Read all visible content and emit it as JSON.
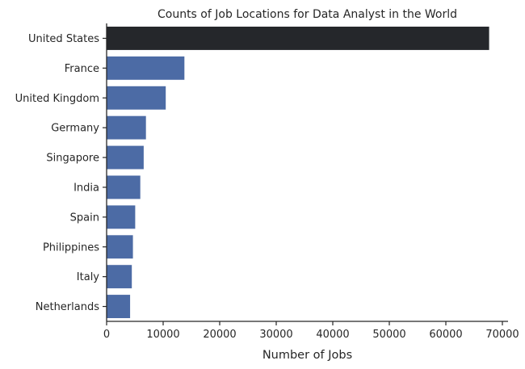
{
  "chart_data": {
    "type": "bar",
    "orientation": "horizontal",
    "title": "Counts of Job Locations for Data Analyst in the World",
    "xlabel": "Number of Jobs",
    "ylabel": "",
    "categories": [
      "United States",
      "France",
      "United Kingdom",
      "Germany",
      "Singapore",
      "India",
      "Spain",
      "Philippines",
      "Italy",
      "Netherlands"
    ],
    "values": [
      67700,
      13800,
      10500,
      7000,
      6600,
      6000,
      5100,
      4700,
      4500,
      4200
    ],
    "xlim": [
      0,
      71000
    ],
    "xticks": [
      0,
      10000,
      20000,
      30000,
      40000,
      50000,
      60000,
      70000
    ],
    "xtick_labels": [
      "0",
      "10000",
      "20000",
      "30000",
      "40000",
      "50000",
      "60000",
      "70000"
    ],
    "grid": false,
    "colors": {
      "highlight": "#25272b",
      "default": "#4c6ba5",
      "axis": "#262626",
      "text": "#262626"
    }
  }
}
